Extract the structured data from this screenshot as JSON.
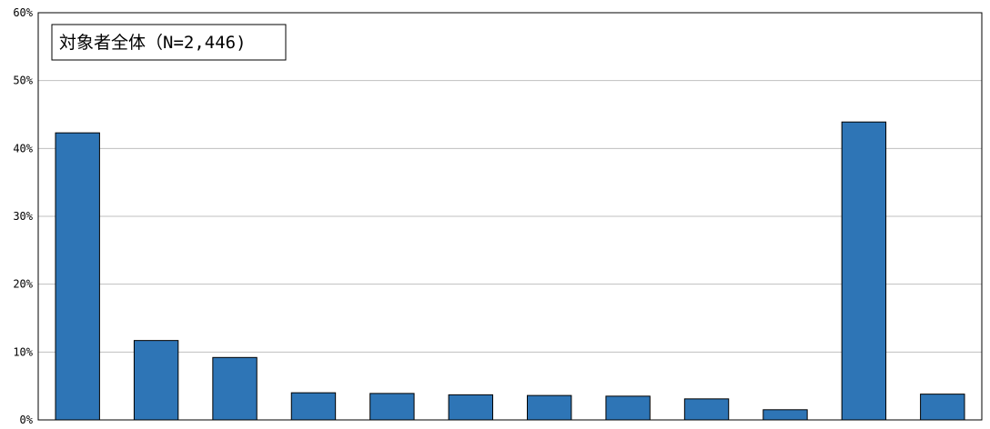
{
  "chart_data": {
    "type": "bar",
    "title": "対象者全体（N=2,446)",
    "xlabel": "",
    "ylabel": "",
    "categories": [
      "",
      "",
      "",
      "",
      "",
      "",
      "",
      "",
      "",
      "",
      "",
      ""
    ],
    "values": [
      42.3,
      11.7,
      9.2,
      4.0,
      3.9,
      3.7,
      3.6,
      3.5,
      3.1,
      1.5,
      43.9,
      3.8
    ],
    "value_unit": "%",
    "ylim": [
      0,
      60
    ],
    "yticks": [
      0,
      10,
      20,
      30,
      40,
      50,
      60
    ],
    "ytick_labels": [
      "0%",
      "10%",
      "20%",
      "30%",
      "40%",
      "50%",
      "60%"
    ],
    "grid": true,
    "bar_color": "#2E75B6",
    "grid_color": "#BFBFBF"
  }
}
